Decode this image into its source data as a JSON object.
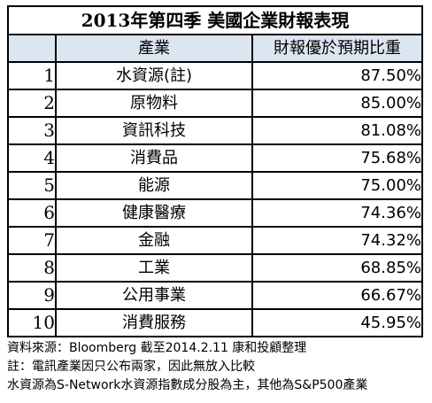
{
  "title": "2013年第四季 美國企業財報表現",
  "headers": {
    "index": "",
    "industry": "產業",
    "beat_rate": "財報優於預期比重"
  },
  "rows": [
    {
      "index": "1",
      "industry": "水資源(註)",
      "beat_rate": "87.50%"
    },
    {
      "index": "2",
      "industry": "原物料",
      "beat_rate": "85.00%"
    },
    {
      "index": "3",
      "industry": "資訊科技",
      "beat_rate": "81.08%"
    },
    {
      "index": "4",
      "industry": "消費品",
      "beat_rate": "75.68%"
    },
    {
      "index": "5",
      "industry": "能源",
      "beat_rate": "75.00%"
    },
    {
      "index": "6",
      "industry": "健康醫療",
      "beat_rate": "74.36%"
    },
    {
      "index": "7",
      "industry": "金融",
      "beat_rate": "74.32%"
    },
    {
      "index": "8",
      "industry": "工業",
      "beat_rate": "68.85%"
    },
    {
      "index": "9",
      "industry": "公用事業",
      "beat_rate": "66.67%"
    },
    {
      "index": "10",
      "industry": "消費服務",
      "beat_rate": "45.95%"
    }
  ],
  "notes": {
    "source": "資料來源：Bloomberg  截至2014.2.11  康和投顧整理",
    "note1": "註：電訊產業因只公布兩家，因此無放入比較",
    "note2": "水資源為S-Network水資源指數成分股為主，其他為S&P500產業"
  }
}
